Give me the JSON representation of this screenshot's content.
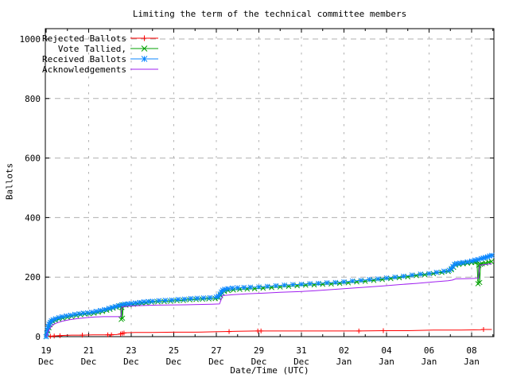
{
  "title": "Limiting the term of the technical committee members",
  "axes": {
    "ylabel": "Ballots",
    "xlabel": "Date/Time (UTC)",
    "y_ticks": [
      {
        "v": 0,
        "label": "0"
      },
      {
        "v": 200,
        "label": "200"
      },
      {
        "v": 400,
        "label": "400"
      },
      {
        "v": 600,
        "label": "600"
      },
      {
        "v": 800,
        "label": "800"
      },
      {
        "v": 1000,
        "label": "1000"
      }
    ],
    "x_ticks": [
      {
        "t": 0,
        "day": "19",
        "month": "Dec"
      },
      {
        "t": 2,
        "day": "21",
        "month": "Dec"
      },
      {
        "t": 4,
        "day": "23",
        "month": "Dec"
      },
      {
        "t": 6,
        "day": "25",
        "month": "Dec"
      },
      {
        "t": 8,
        "day": "27",
        "month": "Dec"
      },
      {
        "t": 10,
        "day": "29",
        "month": "Dec"
      },
      {
        "t": 12,
        "day": "31",
        "month": "Dec"
      },
      {
        "t": 14,
        "day": "02",
        "month": "Jan"
      },
      {
        "t": 16,
        "day": "04",
        "month": "Jan"
      },
      {
        "t": 18,
        "day": "06",
        "month": "Jan"
      },
      {
        "t": 20,
        "day": "08",
        "month": "Jan"
      }
    ]
  },
  "colors": {
    "rejected": "#ff0000",
    "tallied": "#00a000",
    "received": "#0b87ff",
    "acknowledgements": "#a020f0",
    "grid": "#b0b0b0",
    "axis": "#000000"
  },
  "legend": [
    {
      "label": "Rejected Ballots",
      "color": "#ff0000",
      "marker": "plus"
    },
    {
      "label": "Vote Tallied,",
      "color": "#00a000",
      "marker": "cross"
    },
    {
      "label": "Received Ballots",
      "color": "#0b87ff",
      "marker": "star"
    },
    {
      "label": "Acknowledgements",
      "color": "#a020f0",
      "marker": "none"
    }
  ],
  "chart_data": {
    "type": "line",
    "title": "Limiting the term of the technical committee members",
    "xlabel": "Date/Time (UTC)",
    "ylabel": "Ballots",
    "ylim": [
      0,
      1000
    ],
    "x_unit": "days since 19 Dec 00:00 UTC",
    "xlim_days": [
      0,
      21.05
    ],
    "grid": true,
    "legend_position": "top-left",
    "series": [
      {
        "name": "Rejected Ballots",
        "color": "#ff0000",
        "marker": "plus",
        "markers_on": "listed",
        "points": [
          [
            0,
            0
          ],
          [
            0.15,
            1
          ],
          [
            0.3,
            2
          ],
          [
            0.5,
            3
          ],
          [
            0.8,
            4
          ],
          [
            1.2,
            5
          ],
          [
            1.7,
            5
          ],
          [
            2.2,
            6
          ],
          [
            2.8,
            6
          ],
          [
            3.3,
            7
          ],
          [
            3.5,
            9
          ],
          [
            3.62,
            12
          ],
          [
            3.75,
            13
          ],
          [
            4.2,
            14
          ],
          [
            5.0,
            14
          ],
          [
            6.0,
            15
          ],
          [
            7.0,
            15
          ],
          [
            7.7,
            16
          ],
          [
            8.4,
            17
          ],
          [
            9.0,
            18
          ],
          [
            9.9,
            19
          ],
          [
            11.0,
            19
          ],
          [
            12.5,
            19
          ],
          [
            14.0,
            19
          ],
          [
            14.7,
            19
          ],
          [
            15.9,
            20
          ],
          [
            17.0,
            20
          ],
          [
            18.2,
            22
          ],
          [
            19.5,
            22
          ],
          [
            20.4,
            23
          ],
          [
            20.56,
            24
          ],
          [
            20.95,
            24
          ]
        ],
        "marker_points": [
          [
            0.2,
            1
          ],
          [
            0.38,
            2
          ],
          [
            0.65,
            3
          ],
          [
            1.7,
            5
          ],
          [
            2.9,
            6
          ],
          [
            3.07,
            6
          ],
          [
            3.5,
            9
          ],
          [
            3.58,
            11
          ],
          [
            3.66,
            12
          ],
          [
            8.6,
            17
          ],
          [
            9.95,
            19
          ],
          [
            10.1,
            19
          ],
          [
            14.7,
            19
          ],
          [
            15.85,
            20
          ],
          [
            20.56,
            24
          ]
        ]
      },
      {
        "name": "Vote Tallied,",
        "color": "#00a000",
        "marker": "cross",
        "markers_on": "all",
        "points": [
          [
            0,
            0
          ],
          [
            0.04,
            10
          ],
          [
            0.08,
            20
          ],
          [
            0.13,
            30
          ],
          [
            0.18,
            40
          ],
          [
            0.24,
            46
          ],
          [
            0.32,
            51
          ],
          [
            0.44,
            55
          ],
          [
            0.6,
            59
          ],
          [
            0.78,
            62
          ],
          [
            1.0,
            65
          ],
          [
            1.2,
            68
          ],
          [
            1.42,
            71
          ],
          [
            1.62,
            74
          ],
          [
            1.82,
            76
          ],
          [
            2.02,
            77
          ],
          [
            2.25,
            79
          ],
          [
            2.45,
            82
          ],
          [
            2.65,
            85
          ],
          [
            2.85,
            89
          ],
          [
            3.0,
            92
          ],
          [
            3.15,
            96
          ],
          [
            3.3,
            99
          ],
          [
            3.45,
            102
          ],
          [
            3.5,
            104
          ],
          [
            3.53,
            58
          ],
          [
            3.56,
            98
          ],
          [
            3.59,
            62
          ],
          [
            3.62,
            107
          ],
          [
            3.75,
            106
          ],
          [
            3.9,
            107
          ],
          [
            4.1,
            109
          ],
          [
            4.3,
            111
          ],
          [
            4.5,
            113
          ],
          [
            4.7,
            114
          ],
          [
            4.95,
            116
          ],
          [
            5.25,
            117
          ],
          [
            5.55,
            118
          ],
          [
            5.85,
            119
          ],
          [
            6.15,
            121
          ],
          [
            6.45,
            122
          ],
          [
            6.75,
            124
          ],
          [
            7.05,
            125
          ],
          [
            7.35,
            126
          ],
          [
            7.65,
            127
          ],
          [
            7.95,
            128
          ],
          [
            8.1,
            131
          ],
          [
            8.2,
            138
          ],
          [
            8.28,
            146
          ],
          [
            8.38,
            152
          ],
          [
            8.55,
            155
          ],
          [
            8.8,
            157
          ],
          [
            9.1,
            159
          ],
          [
            9.45,
            160
          ],
          [
            9.8,
            161
          ],
          [
            10.2,
            163
          ],
          [
            10.6,
            165
          ],
          [
            11.0,
            167
          ],
          [
            11.4,
            169
          ],
          [
            11.8,
            171
          ],
          [
            12.2,
            173
          ],
          [
            12.6,
            174
          ],
          [
            13.0,
            176
          ],
          [
            13.4,
            177
          ],
          [
            13.8,
            179
          ],
          [
            14.2,
            181
          ],
          [
            14.6,
            184
          ],
          [
            15.0,
            186
          ],
          [
            15.4,
            189
          ],
          [
            15.8,
            192
          ],
          [
            16.2,
            195
          ],
          [
            16.6,
            198
          ],
          [
            17.0,
            201
          ],
          [
            17.4,
            205
          ],
          [
            17.8,
            208
          ],
          [
            18.2,
            212
          ],
          [
            18.6,
            216
          ],
          [
            18.9,
            219
          ],
          [
            19.05,
            225
          ],
          [
            19.15,
            233
          ],
          [
            19.25,
            241
          ],
          [
            19.4,
            243
          ],
          [
            19.6,
            245
          ],
          [
            19.8,
            247
          ],
          [
            20.0,
            249
          ],
          [
            20.15,
            250
          ],
          [
            20.25,
            252
          ],
          [
            20.3,
            178
          ],
          [
            20.34,
            240
          ],
          [
            20.38,
            182
          ],
          [
            20.42,
            243
          ],
          [
            20.5,
            245
          ],
          [
            20.65,
            247
          ],
          [
            20.8,
            250
          ],
          [
            20.93,
            252
          ]
        ]
      },
      {
        "name": "Received Ballots",
        "color": "#0b87ff",
        "marker": "star",
        "markers_on": "all",
        "points": [
          [
            0,
            0
          ],
          [
            0.03,
            12
          ],
          [
            0.06,
            24
          ],
          [
            0.1,
            34
          ],
          [
            0.14,
            42
          ],
          [
            0.19,
            48
          ],
          [
            0.25,
            53
          ],
          [
            0.33,
            57
          ],
          [
            0.45,
            60
          ],
          [
            0.6,
            64
          ],
          [
            0.75,
            67
          ],
          [
            0.95,
            70
          ],
          [
            1.15,
            72
          ],
          [
            1.35,
            75
          ],
          [
            1.55,
            77
          ],
          [
            1.75,
            79
          ],
          [
            1.95,
            80
          ],
          [
            2.15,
            82
          ],
          [
            2.35,
            85
          ],
          [
            2.55,
            88
          ],
          [
            2.75,
            91
          ],
          [
            2.95,
            95
          ],
          [
            3.1,
            98
          ],
          [
            3.25,
            101
          ],
          [
            3.4,
            104
          ],
          [
            3.55,
            107
          ],
          [
            3.7,
            109
          ],
          [
            3.85,
            110
          ],
          [
            4.0,
            111
          ],
          [
            4.2,
            113
          ],
          [
            4.4,
            115
          ],
          [
            4.6,
            117
          ],
          [
            4.8,
            118
          ],
          [
            5.0,
            119
          ],
          [
            5.3,
            121
          ],
          [
            5.6,
            122
          ],
          [
            5.9,
            123
          ],
          [
            6.2,
            125
          ],
          [
            6.5,
            126
          ],
          [
            6.8,
            128
          ],
          [
            7.1,
            129
          ],
          [
            7.4,
            130
          ],
          [
            7.7,
            131
          ],
          [
            8.0,
            133
          ],
          [
            8.1,
            136
          ],
          [
            8.18,
            143
          ],
          [
            8.24,
            150
          ],
          [
            8.3,
            156
          ],
          [
            8.4,
            159
          ],
          [
            8.55,
            161
          ],
          [
            8.75,
            163
          ],
          [
            9.0,
            164
          ],
          [
            9.3,
            165
          ],
          [
            9.6,
            166
          ],
          [
            10.0,
            167
          ],
          [
            10.4,
            169
          ],
          [
            10.8,
            171
          ],
          [
            11.2,
            173
          ],
          [
            11.6,
            175
          ],
          [
            12.0,
            176
          ],
          [
            12.4,
            178
          ],
          [
            12.8,
            179
          ],
          [
            13.2,
            181
          ],
          [
            13.6,
            182
          ],
          [
            14.0,
            184
          ],
          [
            14.4,
            187
          ],
          [
            14.8,
            189
          ],
          [
            15.2,
            192
          ],
          [
            15.6,
            194
          ],
          [
            16.0,
            197
          ],
          [
            16.4,
            200
          ],
          [
            16.8,
            203
          ],
          [
            17.2,
            207
          ],
          [
            17.6,
            210
          ],
          [
            18.0,
            212
          ],
          [
            18.35,
            216
          ],
          [
            18.7,
            220
          ],
          [
            18.95,
            223
          ],
          [
            19.05,
            229
          ],
          [
            19.12,
            236
          ],
          [
            19.2,
            243
          ],
          [
            19.3,
            246
          ],
          [
            19.45,
            247
          ],
          [
            19.6,
            249
          ],
          [
            19.8,
            251
          ],
          [
            20.0,
            254
          ],
          [
            20.15,
            257
          ],
          [
            20.3,
            259
          ],
          [
            20.45,
            262
          ],
          [
            20.55,
            264
          ],
          [
            20.65,
            266
          ],
          [
            20.75,
            268
          ],
          [
            20.85,
            271
          ],
          [
            20.95,
            273
          ]
        ]
      },
      {
        "name": "Acknowledgements",
        "color": "#a020f0",
        "marker": "none",
        "markers_on": "none",
        "points": [
          [
            0,
            0
          ],
          [
            0.05,
            8
          ],
          [
            0.1,
            18
          ],
          [
            0.2,
            30
          ],
          [
            0.32,
            40
          ],
          [
            0.5,
            46
          ],
          [
            0.75,
            52
          ],
          [
            1.1,
            57
          ],
          [
            1.5,
            61
          ],
          [
            1.9,
            64
          ],
          [
            2.3,
            66
          ],
          [
            2.7,
            67
          ],
          [
            3.52,
            67
          ],
          [
            3.56,
            100
          ],
          [
            3.8,
            102
          ],
          [
            4.3,
            104
          ],
          [
            5.2,
            106
          ],
          [
            6.5,
            107
          ],
          [
            7.8,
            109
          ],
          [
            8.15,
            110
          ],
          [
            8.3,
            138
          ],
          [
            8.8,
            141
          ],
          [
            9.5,
            144
          ],
          [
            10.2,
            146
          ],
          [
            11.0,
            149
          ],
          [
            11.8,
            151
          ],
          [
            12.6,
            154
          ],
          [
            13.4,
            158
          ],
          [
            14.2,
            162
          ],
          [
            15.0,
            166
          ],
          [
            15.8,
            170
          ],
          [
            16.6,
            175
          ],
          [
            17.4,
            179
          ],
          [
            18.2,
            184
          ],
          [
            18.9,
            188
          ],
          [
            19.1,
            190
          ],
          [
            19.25,
            194
          ],
          [
            19.8,
            195
          ],
          [
            20.32,
            196
          ],
          [
            20.38,
            240
          ],
          [
            20.6,
            242
          ],
          [
            20.95,
            245
          ]
        ]
      }
    ]
  }
}
